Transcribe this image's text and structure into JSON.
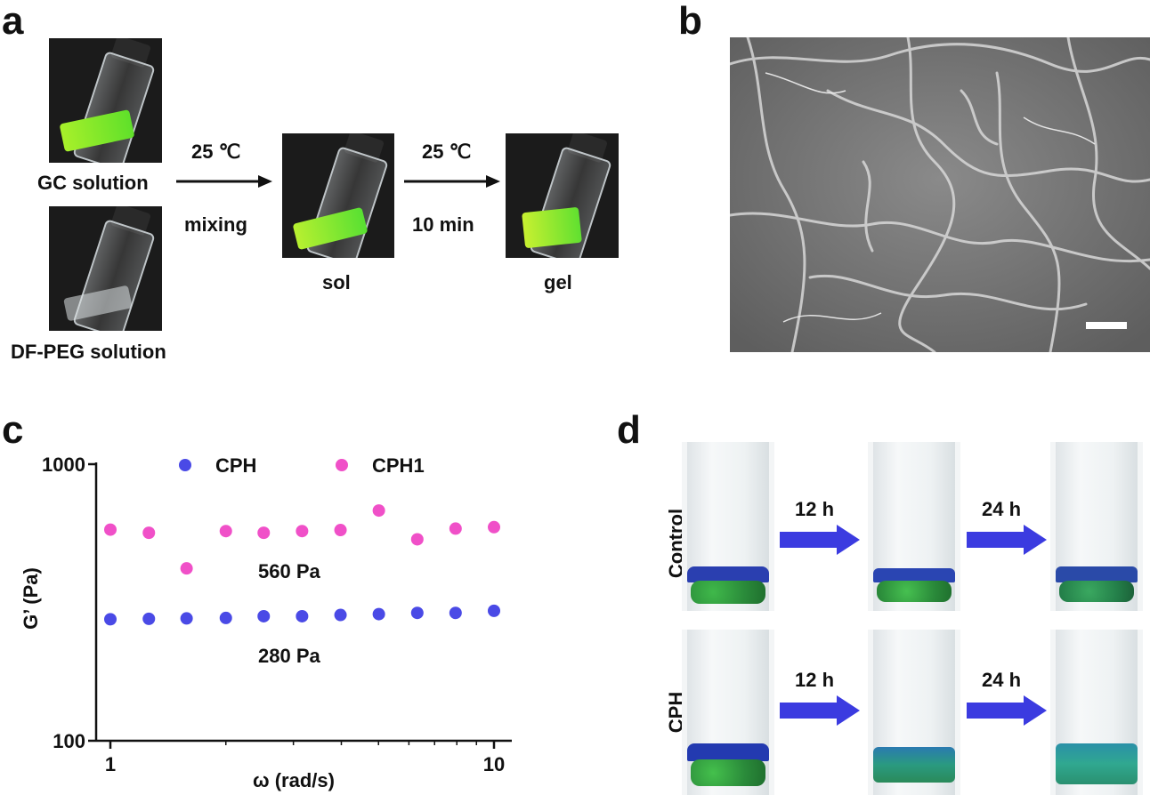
{
  "panels": {
    "a": {
      "letter": "a",
      "gc_label": "GC solution",
      "dfpeg_label": "DF-PEG solution",
      "arrow1_top": "25 ℃",
      "arrow1_bottom": "mixing",
      "arrow2_top": "25 ℃",
      "arrow2_bottom": "10 min",
      "sol_label": "sol",
      "gel_label": "gel"
    },
    "b": {
      "letter": "b"
    },
    "c": {
      "letter": "c"
    },
    "d": {
      "letter": "d",
      "row1_label": "Control",
      "row2_label": "CPH",
      "arrow_12": "12 h",
      "arrow_24": "24 h"
    }
  },
  "chart_data": {
    "type": "scatter",
    "xlabel": "ω (rad/s)",
    "ylabel": "G’ (Pa)",
    "x_scale": "log",
    "y_scale": "log",
    "xlim": [
      1,
      10
    ],
    "ylim": [
      100,
      1000
    ],
    "x_tick_labels": [
      "1",
      "10"
    ],
    "y_tick_labels": [
      "100",
      "1000"
    ],
    "legend_position": "top",
    "series": [
      {
        "name": "CPH",
        "color": "#4a4ae6",
        "x": [
          1,
          1.26,
          1.58,
          2,
          2.51,
          3.16,
          3.98,
          5.01,
          6.31,
          7.94,
          10
        ],
        "y": [
          275,
          276,
          277,
          278,
          282,
          282,
          285,
          287,
          290,
          290,
          295
        ]
      },
      {
        "name": "CPH1",
        "color": "#f050c8",
        "x": [
          1,
          1.26,
          1.58,
          2,
          2.51,
          3.16,
          3.98,
          5.01,
          6.31,
          7.94,
          10
        ],
        "y": [
          580,
          565,
          420,
          573,
          565,
          573,
          578,
          680,
          535,
          585,
          592
        ]
      }
    ],
    "annotations": [
      "560 Pa",
      "280 Pa"
    ]
  }
}
